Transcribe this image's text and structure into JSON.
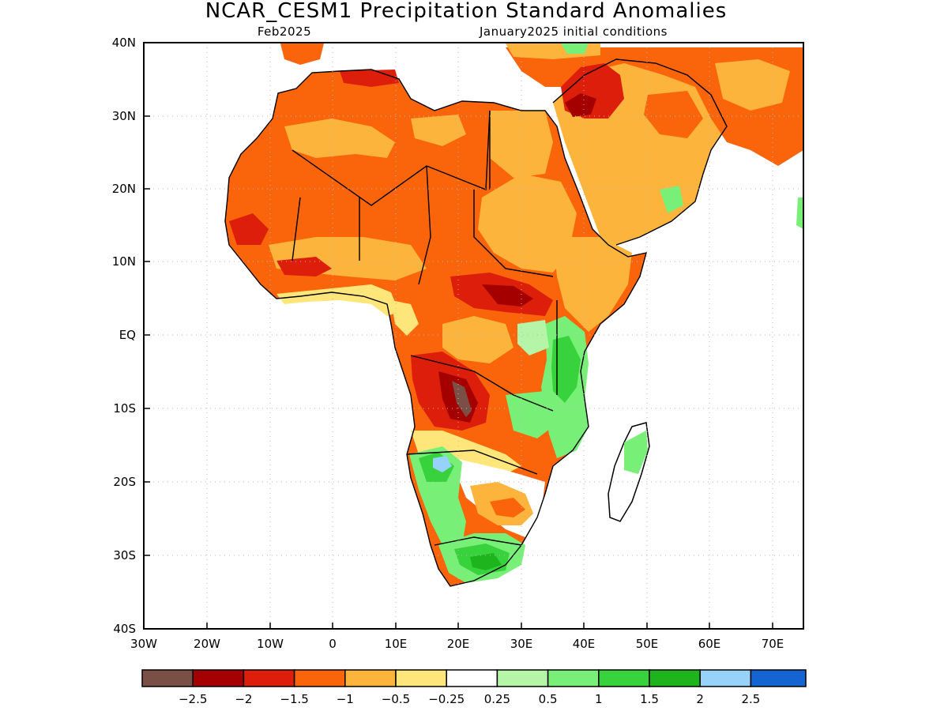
{
  "header": {
    "title": "NCAR_CESM1 Precipitation Standard Anomalies",
    "valid_month": "Feb2025",
    "init_label": "January2025 initial conditions"
  },
  "axes": {
    "y_ticks": [
      "40N",
      "30N",
      "20N",
      "10N",
      "EQ",
      "10S",
      "20S",
      "30S",
      "40S"
    ],
    "x_ticks": [
      "30W",
      "20W",
      "10W",
      "0",
      "10E",
      "20E",
      "30E",
      "40E",
      "50E",
      "60E",
      "70E"
    ]
  },
  "colorbar": {
    "labels": [
      "−2.5",
      "−2",
      "−1.5",
      "−1",
      "−0.5",
      "−0.25",
      "0.25",
      "0.5",
      "1",
      "1.5",
      "2",
      "2.5"
    ],
    "colors": [
      "#7a5046",
      "#a50000",
      "#dc1e0a",
      "#fa640a",
      "#fdb43c",
      "#ffe67a",
      "#ffffff",
      "#b4f5a8",
      "#78f078",
      "#37d23c",
      "#1eb41e",
      "#96d2fa",
      "#1464d2"
    ]
  },
  "map_colors": {
    "orange": "#fa640a",
    "light_orange": "#fdb43c",
    "yellow": "#ffe67a",
    "red": "#dc1e0a",
    "dark_red": "#a50000",
    "brown": "#7a5046",
    "light_green": "#b4f5a8",
    "green": "#78f078",
    "mid_green": "#37d23c",
    "dark_green": "#1eb41e",
    "light_blue": "#96d2fa"
  }
}
